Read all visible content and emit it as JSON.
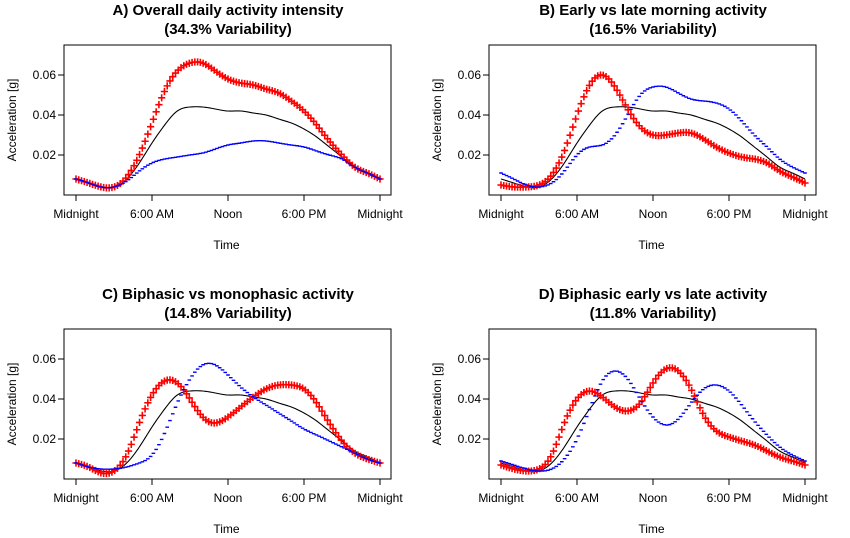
{
  "figure": {
    "colors": {
      "mean": "#000000",
      "plus": "#ff0000",
      "minus": "#0000ff"
    },
    "marker_names": {
      "plus": "plus-marker",
      "minus": "minus-marker"
    }
  },
  "chart_data": [
    {
      "type": "line",
      "title": "A) Overall daily activity intensity",
      "subtitle": "(34.3% Variability)",
      "xlabel": "Time",
      "ylabel": "Acceleration [g]",
      "x_ticks": [
        "Midnight",
        "6:00 AM",
        "Noon",
        "6:00 PM",
        "Midnight"
      ],
      "x_tick_hours": [
        0,
        6,
        12,
        18,
        24
      ],
      "y_ticks": [
        "0.02",
        "0.04",
        "0.06"
      ],
      "y_tick_values": [
        0.02,
        0.04,
        0.06
      ],
      "xlim": [
        0,
        24
      ],
      "ylim": [
        0.0,
        0.075
      ],
      "series": [
        {
          "role": "mean",
          "style": "line",
          "x": [
            0,
            1,
            2,
            3,
            4,
            5,
            6,
            7,
            8,
            9,
            10,
            11,
            12,
            13,
            14,
            15,
            16,
            17,
            18,
            19,
            20,
            21,
            22,
            23,
            24
          ],
          "y": [
            0.008,
            0.006,
            0.004,
            0.004,
            0.008,
            0.016,
            0.026,
            0.035,
            0.042,
            0.044,
            0.044,
            0.043,
            0.042,
            0.042,
            0.041,
            0.04,
            0.038,
            0.036,
            0.033,
            0.029,
            0.024,
            0.019,
            0.014,
            0.011,
            0.008
          ]
        },
        {
          "role": "plus",
          "style": "plus",
          "x": [
            0,
            1,
            2,
            3,
            4,
            5,
            6,
            7,
            8,
            9,
            10,
            11,
            12,
            13,
            14,
            15,
            16,
            17,
            18,
            19,
            20,
            21,
            22,
            23,
            24
          ],
          "y": [
            0.008,
            0.006,
            0.004,
            0.004,
            0.009,
            0.02,
            0.036,
            0.052,
            0.062,
            0.066,
            0.066,
            0.062,
            0.058,
            0.056,
            0.055,
            0.053,
            0.051,
            0.047,
            0.042,
            0.035,
            0.027,
            0.02,
            0.014,
            0.011,
            0.008
          ]
        },
        {
          "role": "minus",
          "style": "minus",
          "x": [
            0,
            1,
            2,
            3,
            4,
            5,
            6,
            7,
            8,
            9,
            10,
            11,
            12,
            13,
            14,
            15,
            16,
            17,
            18,
            19,
            20,
            21,
            22,
            23,
            24
          ],
          "y": [
            0.008,
            0.006,
            0.004,
            0.004,
            0.007,
            0.012,
            0.016,
            0.018,
            0.019,
            0.02,
            0.021,
            0.023,
            0.025,
            0.026,
            0.027,
            0.027,
            0.026,
            0.025,
            0.024,
            0.022,
            0.02,
            0.018,
            0.014,
            0.011,
            0.008
          ]
        }
      ]
    },
    {
      "type": "line",
      "title": "B) Early vs late morning activity",
      "subtitle": "(16.5% Variability)",
      "xlabel": "Time",
      "ylabel": "Acceleration [g]",
      "x_ticks": [
        "Midnight",
        "6:00 AM",
        "Noon",
        "6:00 PM",
        "Midnight"
      ],
      "x_tick_hours": [
        0,
        6,
        12,
        18,
        24
      ],
      "y_ticks": [
        "0.02",
        "0.04",
        "0.06"
      ],
      "y_tick_values": [
        0.02,
        0.04,
        0.06
      ],
      "xlim": [
        0,
        24
      ],
      "ylim": [
        0.0,
        0.075
      ],
      "series": [
        {
          "role": "mean",
          "style": "line",
          "x": [
            0,
            1,
            2,
            3,
            4,
            5,
            6,
            7,
            8,
            9,
            10,
            11,
            12,
            13,
            14,
            15,
            16,
            17,
            18,
            19,
            20,
            21,
            22,
            23,
            24
          ],
          "y": [
            0.008,
            0.006,
            0.004,
            0.004,
            0.008,
            0.016,
            0.026,
            0.035,
            0.042,
            0.044,
            0.044,
            0.043,
            0.042,
            0.042,
            0.041,
            0.04,
            0.038,
            0.036,
            0.033,
            0.029,
            0.024,
            0.019,
            0.014,
            0.011,
            0.008
          ]
        },
        {
          "role": "plus",
          "style": "plus",
          "x": [
            0,
            1,
            2,
            3,
            4,
            5,
            6,
            7,
            8,
            9,
            10,
            11,
            12,
            13,
            14,
            15,
            16,
            17,
            18,
            19,
            20,
            21,
            22,
            23,
            24
          ],
          "y": [
            0.005,
            0.004,
            0.004,
            0.005,
            0.01,
            0.022,
            0.04,
            0.055,
            0.06,
            0.054,
            0.043,
            0.034,
            0.03,
            0.03,
            0.031,
            0.031,
            0.028,
            0.024,
            0.021,
            0.019,
            0.018,
            0.016,
            0.012,
            0.009,
            0.006
          ]
        },
        {
          "role": "minus",
          "style": "minus",
          "x": [
            0,
            1,
            2,
            3,
            4,
            5,
            6,
            7,
            8,
            9,
            10,
            11,
            12,
            13,
            14,
            15,
            16,
            17,
            18,
            19,
            20,
            21,
            22,
            23,
            24
          ],
          "y": [
            0.011,
            0.008,
            0.005,
            0.004,
            0.006,
            0.012,
            0.02,
            0.024,
            0.025,
            0.03,
            0.04,
            0.05,
            0.054,
            0.054,
            0.051,
            0.048,
            0.047,
            0.046,
            0.043,
            0.037,
            0.03,
            0.024,
            0.018,
            0.014,
            0.011
          ]
        }
      ]
    },
    {
      "type": "line",
      "title": "C) Biphasic vs monophasic activity",
      "subtitle": "(14.8% Variability)",
      "xlabel": "Time",
      "ylabel": "Acceleration [g]",
      "x_ticks": [
        "Midnight",
        "6:00 AM",
        "Noon",
        "6:00 PM",
        "Midnight"
      ],
      "x_tick_hours": [
        0,
        6,
        12,
        18,
        24
      ],
      "y_ticks": [
        "0.02",
        "0.04",
        "0.06"
      ],
      "y_tick_values": [
        0.02,
        0.04,
        0.06
      ],
      "xlim": [
        0,
        24
      ],
      "ylim": [
        0.0,
        0.075
      ],
      "series": [
        {
          "role": "mean",
          "style": "line",
          "x": [
            0,
            1,
            2,
            3,
            4,
            5,
            6,
            7,
            8,
            9,
            10,
            11,
            12,
            13,
            14,
            15,
            16,
            17,
            18,
            19,
            20,
            21,
            22,
            23,
            24
          ],
          "y": [
            0.008,
            0.006,
            0.004,
            0.004,
            0.008,
            0.016,
            0.026,
            0.035,
            0.042,
            0.044,
            0.044,
            0.043,
            0.042,
            0.042,
            0.041,
            0.04,
            0.038,
            0.036,
            0.033,
            0.029,
            0.024,
            0.019,
            0.014,
            0.011,
            0.008
          ]
        },
        {
          "role": "plus",
          "style": "plus",
          "x": [
            0,
            1,
            2,
            3,
            4,
            5,
            6,
            7,
            8,
            9,
            10,
            11,
            12,
            13,
            14,
            15,
            16,
            17,
            18,
            19,
            20,
            21,
            22,
            23,
            24
          ],
          "y": [
            0.008,
            0.006,
            0.003,
            0.004,
            0.012,
            0.028,
            0.042,
            0.049,
            0.048,
            0.04,
            0.031,
            0.028,
            0.031,
            0.036,
            0.041,
            0.045,
            0.047,
            0.047,
            0.045,
            0.038,
            0.028,
            0.019,
            0.013,
            0.01,
            0.008
          ]
        },
        {
          "role": "minus",
          "style": "minus",
          "x": [
            0,
            1,
            2,
            3,
            4,
            5,
            6,
            7,
            8,
            9,
            10,
            11,
            12,
            13,
            14,
            15,
            16,
            17,
            18,
            19,
            20,
            21,
            22,
            23,
            24
          ],
          "y": [
            0.008,
            0.006,
            0.005,
            0.005,
            0.006,
            0.008,
            0.012,
            0.023,
            0.038,
            0.05,
            0.057,
            0.057,
            0.052,
            0.046,
            0.041,
            0.037,
            0.033,
            0.029,
            0.025,
            0.022,
            0.019,
            0.016,
            0.013,
            0.01,
            0.008
          ]
        }
      ]
    },
    {
      "type": "line",
      "title": "D) Biphasic early vs late activity",
      "subtitle": "(11.8% Variability)",
      "xlabel": "Time",
      "ylabel": "Acceleration [g]",
      "x_ticks": [
        "Midnight",
        "6:00 AM",
        "Noon",
        "6:00 PM",
        "Midnight"
      ],
      "x_tick_hours": [
        0,
        6,
        12,
        18,
        24
      ],
      "y_ticks": [
        "0.02",
        "0.04",
        "0.06"
      ],
      "y_tick_values": [
        0.02,
        0.04,
        0.06
      ],
      "xlim": [
        0,
        24
      ],
      "ylim": [
        0.0,
        0.075
      ],
      "series": [
        {
          "role": "mean",
          "style": "line",
          "x": [
            0,
            1,
            2,
            3,
            4,
            5,
            6,
            7,
            8,
            9,
            10,
            11,
            12,
            13,
            14,
            15,
            16,
            17,
            18,
            19,
            20,
            21,
            22,
            23,
            24
          ],
          "y": [
            0.008,
            0.006,
            0.004,
            0.004,
            0.008,
            0.016,
            0.026,
            0.035,
            0.042,
            0.044,
            0.044,
            0.043,
            0.042,
            0.042,
            0.041,
            0.04,
            0.038,
            0.036,
            0.033,
            0.029,
            0.024,
            0.019,
            0.014,
            0.011,
            0.008
          ]
        },
        {
          "role": "plus",
          "style": "plus",
          "x": [
            0,
            1,
            2,
            3,
            4,
            5,
            6,
            7,
            8,
            9,
            10,
            11,
            12,
            13,
            14,
            15,
            16,
            17,
            18,
            19,
            20,
            21,
            22,
            23,
            24
          ],
          "y": [
            0.007,
            0.005,
            0.004,
            0.005,
            0.012,
            0.028,
            0.04,
            0.044,
            0.041,
            0.036,
            0.034,
            0.038,
            0.048,
            0.055,
            0.054,
            0.045,
            0.032,
            0.024,
            0.021,
            0.019,
            0.017,
            0.014,
            0.011,
            0.009,
            0.007
          ]
        },
        {
          "role": "minus",
          "style": "minus",
          "x": [
            0,
            1,
            2,
            3,
            4,
            5,
            6,
            7,
            8,
            9,
            10,
            11,
            12,
            13,
            14,
            15,
            16,
            17,
            18,
            19,
            20,
            21,
            22,
            23,
            24
          ],
          "y": [
            0.009,
            0.007,
            0.005,
            0.004,
            0.005,
            0.01,
            0.02,
            0.035,
            0.049,
            0.054,
            0.05,
            0.04,
            0.031,
            0.027,
            0.03,
            0.038,
            0.045,
            0.047,
            0.044,
            0.037,
            0.029,
            0.022,
            0.016,
            0.012,
            0.009
          ]
        }
      ]
    }
  ]
}
